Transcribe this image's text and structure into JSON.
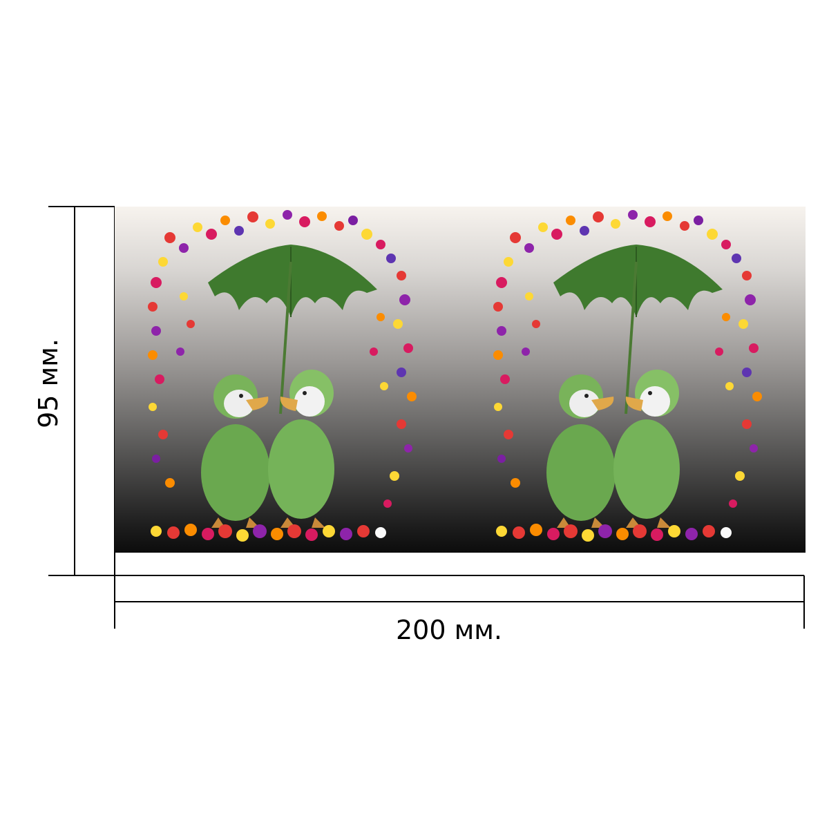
{
  "dimensions": {
    "width_label": "200 мм.",
    "height_label": "95 мм."
  },
  "artwork": {
    "panels": 2,
    "colors": {
      "umbrella": "#3f7a2e",
      "raincoat": "#6aa84f",
      "beak": "#e0a84a",
      "background_top": "#f7f3ee",
      "background_bottom": "#0c0c0c"
    }
  }
}
